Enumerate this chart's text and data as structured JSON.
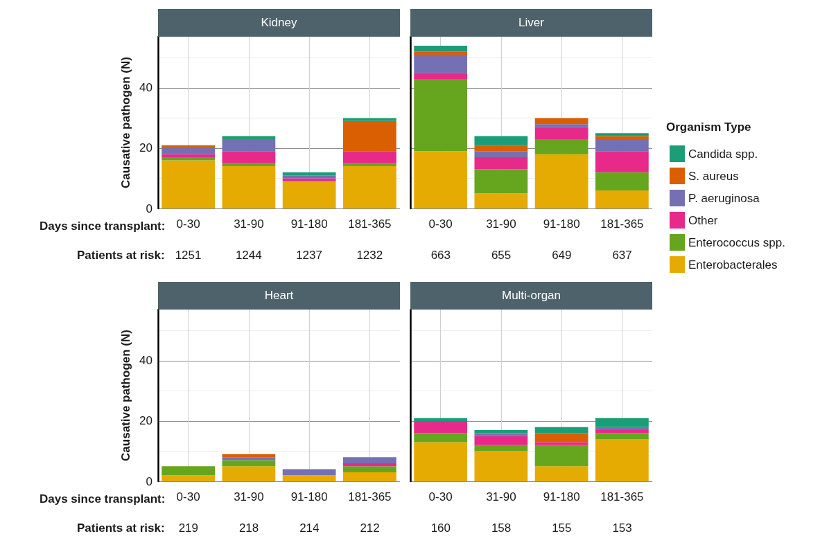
{
  "chart_data": [
    {
      "type": "bar",
      "title": "Kidney",
      "xlabel": "Days since transplant:",
      "ylabel": "Causative pathogen (N)",
      "categories": [
        "0-30",
        "31-90",
        "91-180",
        "181-365"
      ],
      "stacked": true,
      "ylim": [
        0,
        57
      ],
      "yticks": [
        0,
        20,
        40
      ],
      "grid": true,
      "series": [
        {
          "color": "#e6ab02",
          "values": [
            16,
            14,
            9,
            14
          ]
        },
        {
          "color": "#66a61e",
          "values": [
            1,
            1,
            0,
            1
          ]
        },
        {
          "color": "#e7298a",
          "values": [
            1,
            4,
            1,
            4
          ]
        },
        {
          "color": "#7570b3",
          "values": [
            2,
            4,
            1,
            0
          ]
        },
        {
          "color": "#d95f02",
          "values": [
            1,
            0,
            0,
            10
          ]
        },
        {
          "color": "#1b9e77",
          "values": [
            0,
            1,
            1,
            1
          ]
        }
      ],
      "annotations": [
        "Patients at risk:",
        "1251",
        "1244",
        "1237",
        "1232"
      ]
    },
    {
      "type": "bar",
      "title": "Liver",
      "categories": [
        "0-30",
        "31-90",
        "91-180",
        "181-365"
      ],
      "stacked": true,
      "ylim": [
        0,
        57
      ],
      "yticks": [
        0,
        20,
        40
      ],
      "grid": true,
      "tick_labels": "x",
      "legend": "right",
      "legend_title": "Organism Type",
      "series": [
        {
          "name": "Enterobacterales",
          "color": "#e6ab02",
          "values": [
            19,
            5,
            18,
            6
          ]
        },
        {
          "name": "Enterococcus spp.",
          "color": "#66a61e",
          "values": [
            24,
            8,
            5,
            6
          ]
        },
        {
          "name": "Other",
          "color": "#e7298a",
          "values": [
            2,
            4,
            4,
            7
          ]
        },
        {
          "name": "P. aeruginosa",
          "color": "#7570b3",
          "values": [
            6,
            2,
            1,
            4
          ]
        },
        {
          "name": "S. aureus",
          "color": "#d95f02",
          "values": [
            1,
            2,
            2,
            1
          ]
        },
        {
          "name": "Candida spp.",
          "color": "#1b9e77",
          "values": [
            2,
            3,
            0,
            1
          ]
        }
      ],
      "annotations": [
        "663",
        "655",
        "649",
        "637"
      ]
    },
    {
      "type": "bar",
      "title": "Heart",
      "xlabel": "Days since transplant:",
      "ylabel": "Causative pathogen (N)",
      "categories": [
        "0-30",
        "31-90",
        "91-180",
        "181-365"
      ],
      "stacked": true,
      "ylim": [
        0,
        57
      ],
      "yticks": [
        0,
        20,
        40
      ],
      "grid": true,
      "series": [
        {
          "color": "#e6ab02",
          "values": [
            2,
            5,
            2,
            3
          ]
        },
        {
          "color": "#66a61e",
          "values": [
            3,
            2,
            0,
            2
          ]
        },
        {
          "color": "#e7298a",
          "values": [
            0,
            0,
            0,
            1
          ]
        },
        {
          "color": "#7570b3",
          "values": [
            0,
            1,
            2,
            2
          ]
        },
        {
          "color": "#d95f02",
          "values": [
            0,
            1,
            0,
            0
          ]
        },
        {
          "color": "#1b9e77",
          "values": [
            0,
            0,
            0,
            0
          ]
        }
      ],
      "annotations": [
        "Patients at risk:",
        "219",
        "218",
        "214",
        "212"
      ]
    },
    {
      "type": "bar",
      "title": "Multi-organ",
      "categories": [
        "0-30",
        "31-90",
        "91-180",
        "181-365"
      ],
      "stacked": true,
      "ylim": [
        0,
        57
      ],
      "yticks": [
        0,
        20,
        40
      ],
      "grid": true,
      "tick_labels": "x",
      "series": [
        {
          "color": "#e6ab02",
          "values": [
            13,
            10,
            5,
            14
          ]
        },
        {
          "color": "#66a61e",
          "values": [
            3,
            2,
            7,
            2
          ]
        },
        {
          "color": "#e7298a",
          "values": [
            4,
            3,
            1,
            1
          ]
        },
        {
          "color": "#7570b3",
          "values": [
            0,
            1,
            0,
            1
          ]
        },
        {
          "color": "#d95f02",
          "values": [
            0,
            0,
            3,
            0
          ]
        },
        {
          "color": "#1b9e77",
          "values": [
            1,
            1,
            2,
            3
          ]
        }
      ],
      "annotations": [
        "160",
        "158",
        "155",
        "153"
      ]
    }
  ]
}
